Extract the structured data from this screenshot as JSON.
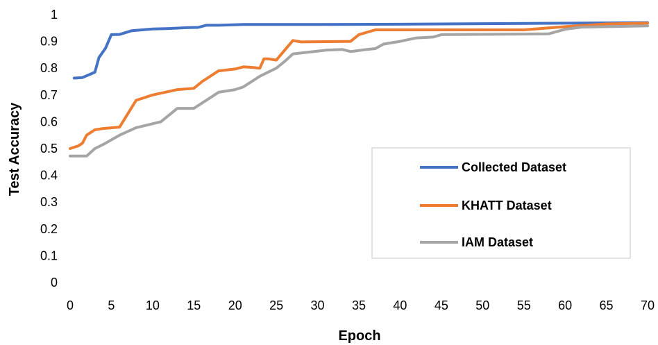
{
  "chart_data": {
    "type": "line",
    "xlabel": "Epoch",
    "ylabel": "Test Accuracy",
    "xlim": [
      0,
      70
    ],
    "ylim": [
      0,
      1
    ],
    "x_ticks": [
      "0",
      "5",
      "10",
      "15",
      "20",
      "25",
      "30",
      "35",
      "40",
      "45",
      "50",
      "55",
      "60",
      "65",
      "70"
    ],
    "y_ticks": [
      "0",
      "0.1",
      "0.2",
      "0.3",
      "0.4",
      "0.5",
      "0.6",
      "0.7",
      "0.8",
      "0.9",
      "1"
    ],
    "grid": "none",
    "legend_position": "bottom-right",
    "series": [
      {
        "name": "Collected Dataset",
        "color": "#4472C4",
        "points": [
          [
            0.5,
            0.763
          ],
          [
            1.5,
            0.765
          ],
          [
            3,
            0.785
          ],
          [
            3.5,
            0.84
          ],
          [
            4.3,
            0.875
          ],
          [
            5,
            0.925
          ],
          [
            6,
            0.926
          ],
          [
            7.5,
            0.94
          ],
          [
            10,
            0.946
          ],
          [
            12,
            0.948
          ],
          [
            14,
            0.951
          ],
          [
            15.5,
            0.952
          ],
          [
            16.5,
            0.96
          ],
          [
            18,
            0.96
          ],
          [
            21,
            0.963
          ],
          [
            30,
            0.963
          ],
          [
            40,
            0.964
          ],
          [
            50,
            0.966
          ],
          [
            60,
            0.968
          ],
          [
            70,
            0.97
          ]
        ]
      },
      {
        "name": "KHATT Dataset",
        "color": "#ED7D31",
        "points": [
          [
            0,
            0.5
          ],
          [
            1,
            0.51
          ],
          [
            1.5,
            0.52
          ],
          [
            2,
            0.55
          ],
          [
            3,
            0.57
          ],
          [
            4,
            0.575
          ],
          [
            6,
            0.58
          ],
          [
            8,
            0.68
          ],
          [
            10,
            0.7
          ],
          [
            13,
            0.72
          ],
          [
            15,
            0.725
          ],
          [
            16,
            0.75
          ],
          [
            18,
            0.79
          ],
          [
            20,
            0.797
          ],
          [
            21,
            0.805
          ],
          [
            22,
            0.803
          ],
          [
            23,
            0.8
          ],
          [
            23.5,
            0.835
          ],
          [
            24,
            0.835
          ],
          [
            25,
            0.83
          ],
          [
            27,
            0.903
          ],
          [
            28,
            0.898
          ],
          [
            34,
            0.9
          ],
          [
            35,
            0.925
          ],
          [
            37,
            0.943
          ],
          [
            55,
            0.943
          ],
          [
            60,
            0.955
          ],
          [
            65,
            0.965
          ],
          [
            70,
            0.968
          ]
        ]
      },
      {
        "name": "IAM Dataset",
        "color": "#A5A5A5",
        "points": [
          [
            0,
            0.472
          ],
          [
            2,
            0.472
          ],
          [
            3,
            0.5
          ],
          [
            4,
            0.515
          ],
          [
            6,
            0.55
          ],
          [
            8,
            0.578
          ],
          [
            11,
            0.6
          ],
          [
            13,
            0.65
          ],
          [
            15,
            0.65
          ],
          [
            17,
            0.69
          ],
          [
            18,
            0.71
          ],
          [
            20,
            0.72
          ],
          [
            21,
            0.73
          ],
          [
            23,
            0.77
          ],
          [
            25,
            0.8
          ],
          [
            26,
            0.825
          ],
          [
            27,
            0.853
          ],
          [
            29,
            0.86
          ],
          [
            31,
            0.867
          ],
          [
            33,
            0.87
          ],
          [
            34,
            0.862
          ],
          [
            36,
            0.87
          ],
          [
            37,
            0.873
          ],
          [
            38,
            0.89
          ],
          [
            40,
            0.9
          ],
          [
            42,
            0.913
          ],
          [
            44,
            0.916
          ],
          [
            45,
            0.925
          ],
          [
            58,
            0.928
          ],
          [
            60,
            0.945
          ],
          [
            62,
            0.953
          ],
          [
            65,
            0.955
          ],
          [
            70,
            0.958
          ]
        ]
      }
    ]
  }
}
